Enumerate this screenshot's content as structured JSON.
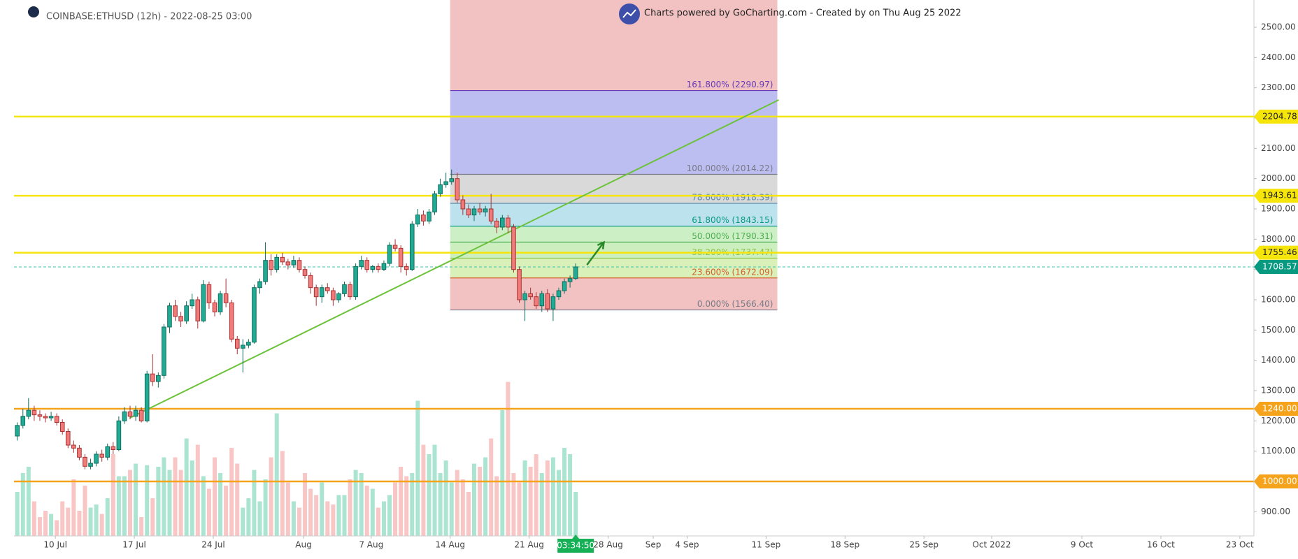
{
  "chart_data": {
    "type": "candlestick",
    "title": "COINBASE:ETHUSD (12h) - 2022-08-25 03:00",
    "credit": "Charts powered by GoCharting.com - Created by  on Thu Aug 25 2022",
    "timer": "03:34:50",
    "up_color": "#22ab94",
    "up_border": "#0e6e5e",
    "down_color": "#f07b7b",
    "down_border": "#a93232",
    "volume_up_color": "#abe5d2",
    "volume_down_color": "#f9c6c6",
    "grid": false,
    "ylim": [
      820,
      2590
    ],
    "yticks": [
      {
        "value": 900,
        "label": "900.00"
      },
      {
        "value": 1000,
        "label": "1000.00"
      },
      {
        "value": 1100,
        "label": "1100.00"
      },
      {
        "value": 1200,
        "label": "1200.00"
      },
      {
        "value": 1300,
        "label": "1300.00"
      },
      {
        "value": 1400,
        "label": "1400.00"
      },
      {
        "value": 1500,
        "label": "1500.00"
      },
      {
        "value": 1600,
        "label": "1600.00"
      },
      {
        "value": 1700,
        "label": "1700.00"
      },
      {
        "value": 1800,
        "label": "1800.00"
      },
      {
        "value": 1900,
        "label": "1900.00"
      },
      {
        "value": 2000,
        "label": "2000.00"
      },
      {
        "value": 2100,
        "label": "2100.00"
      },
      {
        "value": 2200,
        "label": "2200.00"
      },
      {
        "value": 2300,
        "label": "2300.00"
      },
      {
        "value": 2400,
        "label": "2400.00"
      },
      {
        "value": 2500,
        "label": "2500.00"
      }
    ],
    "xlim": [
      "2022-07-06 08:00",
      "2022-10-24 06:00"
    ],
    "xticks": [
      {
        "value": "2022-07-10 00:00",
        "label": "10 Jul"
      },
      {
        "value": "2022-07-17 00:00",
        "label": "17 Jul"
      },
      {
        "value": "2022-07-24 00:00",
        "label": "24 Jul"
      },
      {
        "value": "2022-08-01 00:00",
        "label": "Aug"
      },
      {
        "value": "2022-08-07 00:00",
        "label": "7 Aug"
      },
      {
        "value": "2022-08-14 00:00",
        "label": "14 Aug"
      },
      {
        "value": "2022-08-21 00:00",
        "label": "21 Aug"
      },
      {
        "value": "2022-08-28 00:00",
        "label": "28 Aug"
      },
      {
        "value": "2022-09-01 00:00",
        "label": "Sep"
      },
      {
        "value": "2022-09-04 00:00",
        "label": "4 Sep"
      },
      {
        "value": "2022-09-11 00:00",
        "label": "11 Sep"
      },
      {
        "value": "2022-09-18 00:00",
        "label": "18 Sep"
      },
      {
        "value": "2022-09-25 00:00",
        "label": "25 Sep"
      },
      {
        "value": "2022-10-01 00:00",
        "label": "Oct 2022"
      },
      {
        "value": "2022-10-09 00:00",
        "label": "9 Oct"
      },
      {
        "value": "2022-10-16 00:00",
        "label": "16 Oct"
      },
      {
        "value": "2022-10-23 00:00",
        "label": "23 Oct"
      }
    ],
    "x": [
      "2022-07-06 15:00",
      "2022-07-07 03:00",
      "2022-07-07 15:00",
      "2022-07-08 03:00",
      "2022-07-08 15:00",
      "2022-07-09 03:00",
      "2022-07-09 15:00",
      "2022-07-10 03:00",
      "2022-07-10 15:00",
      "2022-07-11 03:00",
      "2022-07-11 15:00",
      "2022-07-12 03:00",
      "2022-07-12 15:00",
      "2022-07-13 03:00",
      "2022-07-13 15:00",
      "2022-07-14 03:00",
      "2022-07-14 15:00",
      "2022-07-15 03:00",
      "2022-07-15 15:00",
      "2022-07-16 03:00",
      "2022-07-16 15:00",
      "2022-07-17 03:00",
      "2022-07-17 15:00",
      "2022-07-18 03:00",
      "2022-07-18 15:00",
      "2022-07-19 03:00",
      "2022-07-19 15:00",
      "2022-07-20 03:00",
      "2022-07-20 15:00",
      "2022-07-21 03:00",
      "2022-07-21 15:00",
      "2022-07-22 03:00",
      "2022-07-22 15:00",
      "2022-07-23 03:00",
      "2022-07-23 15:00",
      "2022-07-24 03:00",
      "2022-07-24 15:00",
      "2022-07-25 03:00",
      "2022-07-25 15:00",
      "2022-07-26 03:00",
      "2022-07-26 15:00",
      "2022-07-27 03:00",
      "2022-07-27 15:00",
      "2022-07-28 03:00",
      "2022-07-28 15:00",
      "2022-07-29 03:00",
      "2022-07-29 15:00",
      "2022-07-30 03:00",
      "2022-07-30 15:00",
      "2022-07-31 03:00",
      "2022-07-31 15:00",
      "2022-08-01 03:00",
      "2022-08-01 15:00",
      "2022-08-02 03:00",
      "2022-08-02 15:00",
      "2022-08-03 03:00",
      "2022-08-03 15:00",
      "2022-08-04 03:00",
      "2022-08-04 15:00",
      "2022-08-05 03:00",
      "2022-08-05 15:00",
      "2022-08-06 03:00",
      "2022-08-06 15:00",
      "2022-08-07 03:00",
      "2022-08-07 15:00",
      "2022-08-08 03:00",
      "2022-08-08 15:00",
      "2022-08-09 03:00",
      "2022-08-09 15:00",
      "2022-08-10 03:00",
      "2022-08-10 15:00",
      "2022-08-11 03:00",
      "2022-08-11 15:00",
      "2022-08-12 03:00",
      "2022-08-12 15:00",
      "2022-08-13 03:00",
      "2022-08-13 15:00",
      "2022-08-14 03:00",
      "2022-08-14 15:00",
      "2022-08-15 03:00",
      "2022-08-15 15:00",
      "2022-08-16 03:00",
      "2022-08-16 15:00",
      "2022-08-17 03:00",
      "2022-08-17 15:00",
      "2022-08-18 03:00",
      "2022-08-18 15:00",
      "2022-08-19 03:00",
      "2022-08-19 15:00",
      "2022-08-20 03:00",
      "2022-08-20 15:00",
      "2022-08-21 03:00",
      "2022-08-21 15:00",
      "2022-08-22 03:00",
      "2022-08-22 15:00",
      "2022-08-23 03:00",
      "2022-08-23 15:00",
      "2022-08-24 03:00",
      "2022-08-24 15:00",
      "2022-08-25 03:00"
    ],
    "candles": [
      [
        1150,
        1195,
        1135,
        1185
      ],
      [
        1185,
        1240,
        1175,
        1215
      ],
      [
        1215,
        1275,
        1205,
        1235
      ],
      [
        1235,
        1250,
        1200,
        1220
      ],
      [
        1220,
        1235,
        1200,
        1215
      ],
      [
        1215,
        1225,
        1195,
        1210
      ],
      [
        1210,
        1230,
        1200,
        1215
      ],
      [
        1215,
        1225,
        1185,
        1195
      ],
      [
        1195,
        1205,
        1155,
        1165
      ],
      [
        1165,
        1175,
        1110,
        1120
      ],
      [
        1120,
        1135,
        1095,
        1110
      ],
      [
        1110,
        1120,
        1070,
        1080
      ],
      [
        1080,
        1090,
        1040,
        1050
      ],
      [
        1050,
        1075,
        1040,
        1060
      ],
      [
        1060,
        1100,
        1050,
        1090
      ],
      [
        1090,
        1105,
        1065,
        1080
      ],
      [
        1080,
        1125,
        1070,
        1115
      ],
      [
        1115,
        1130,
        1090,
        1105
      ],
      [
        1105,
        1215,
        1100,
        1200
      ],
      [
        1200,
        1245,
        1190,
        1230
      ],
      [
        1230,
        1250,
        1205,
        1215
      ],
      [
        1215,
        1250,
        1200,
        1235
      ],
      [
        1235,
        1245,
        1195,
        1200
      ],
      [
        1200,
        1365,
        1195,
        1355
      ],
      [
        1355,
        1420,
        1315,
        1330
      ],
      [
        1330,
        1360,
        1310,
        1350
      ],
      [
        1350,
        1520,
        1340,
        1510
      ],
      [
        1510,
        1590,
        1490,
        1580
      ],
      [
        1580,
        1600,
        1530,
        1545
      ],
      [
        1545,
        1560,
        1510,
        1530
      ],
      [
        1530,
        1595,
        1520,
        1580
      ],
      [
        1580,
        1620,
        1570,
        1600
      ],
      [
        1600,
        1610,
        1505,
        1530
      ],
      [
        1530,
        1665,
        1525,
        1650
      ],
      [
        1650,
        1660,
        1570,
        1590
      ],
      [
        1590,
        1600,
        1545,
        1560
      ],
      [
        1560,
        1630,
        1550,
        1620
      ],
      [
        1620,
        1670,
        1575,
        1590
      ],
      [
        1590,
        1600,
        1460,
        1470
      ],
      [
        1470,
        1480,
        1420,
        1440
      ],
      [
        1440,
        1470,
        1360,
        1450
      ],
      [
        1450,
        1470,
        1440,
        1460
      ],
      [
        1460,
        1650,
        1455,
        1640
      ],
      [
        1640,
        1670,
        1620,
        1660
      ],
      [
        1660,
        1790,
        1650,
        1730
      ],
      [
        1730,
        1750,
        1680,
        1700
      ],
      [
        1700,
        1750,
        1690,
        1740
      ],
      [
        1740,
        1755,
        1715,
        1725
      ],
      [
        1725,
        1735,
        1700,
        1715
      ],
      [
        1715,
        1745,
        1705,
        1730
      ],
      [
        1730,
        1740,
        1690,
        1700
      ],
      [
        1700,
        1710,
        1670,
        1680
      ],
      [
        1680,
        1690,
        1620,
        1640
      ],
      [
        1640,
        1650,
        1580,
        1610
      ],
      [
        1610,
        1650,
        1590,
        1640
      ],
      [
        1640,
        1655,
        1620,
        1630
      ],
      [
        1630,
        1640,
        1580,
        1600
      ],
      [
        1600,
        1625,
        1590,
        1620
      ],
      [
        1620,
        1660,
        1610,
        1650
      ],
      [
        1650,
        1660,
        1600,
        1610
      ],
      [
        1610,
        1720,
        1600,
        1710
      ],
      [
        1710,
        1745,
        1700,
        1730
      ],
      [
        1730,
        1740,
        1690,
        1700
      ],
      [
        1700,
        1715,
        1690,
        1710
      ],
      [
        1710,
        1720,
        1690,
        1700
      ],
      [
        1700,
        1730,
        1695,
        1720
      ],
      [
        1720,
        1790,
        1710,
        1780
      ],
      [
        1780,
        1800,
        1760,
        1770
      ],
      [
        1770,
        1780,
        1690,
        1710
      ],
      [
        1710,
        1720,
        1680,
        1700
      ],
      [
        1700,
        1860,
        1695,
        1850
      ],
      [
        1850,
        1900,
        1840,
        1880
      ],
      [
        1880,
        1895,
        1845,
        1860
      ],
      [
        1860,
        1900,
        1850,
        1890
      ],
      [
        1890,
        1960,
        1880,
        1950
      ],
      [
        1950,
        2000,
        1940,
        1980
      ],
      [
        1980,
        2020,
        1970,
        1990
      ],
      [
        1990,
        2030,
        1980,
        2000
      ],
      [
        2000,
        2020,
        1920,
        1930
      ],
      [
        1930,
        1945,
        1880,
        1900
      ],
      [
        1900,
        1915,
        1870,
        1880
      ],
      [
        1880,
        1910,
        1860,
        1900
      ],
      [
        1900,
        1920,
        1880,
        1890
      ],
      [
        1890,
        1910,
        1875,
        1900
      ],
      [
        1900,
        1950,
        1850,
        1860
      ],
      [
        1860,
        1870,
        1820,
        1840
      ],
      [
        1840,
        1880,
        1830,
        1870
      ],
      [
        1870,
        1880,
        1820,
        1840
      ],
      [
        1840,
        1850,
        1690,
        1700
      ],
      [
        1700,
        1710,
        1590,
        1600
      ],
      [
        1600,
        1630,
        1530,
        1620
      ],
      [
        1620,
        1640,
        1600,
        1610
      ],
      [
        1610,
        1625,
        1570,
        1580
      ],
      [
        1580,
        1630,
        1560,
        1620
      ],
      [
        1620,
        1635,
        1560,
        1570
      ],
      [
        1570,
        1620,
        1530,
        1610
      ],
      [
        1610,
        1640,
        1600,
        1630
      ],
      [
        1630,
        1670,
        1620,
        1660
      ],
      [
        1660,
        1680,
        1640,
        1670
      ],
      [
        1670,
        1720,
        1665,
        1708.57
      ]
    ],
    "volume": [
      28,
      40,
      44,
      22,
      12,
      16,
      14,
      10,
      22,
      18,
      36,
      16,
      32,
      18,
      20,
      14,
      24,
      52,
      38,
      38,
      42,
      46,
      12,
      45,
      24,
      44,
      50,
      42,
      50,
      42,
      62,
      48,
      58,
      38,
      30,
      50,
      40,
      32,
      56,
      46,
      18,
      24,
      42,
      22,
      36,
      50,
      78,
      54,
      34,
      22,
      18,
      40,
      30,
      26,
      34,
      22,
      20,
      26,
      26,
      36,
      42,
      40,
      32,
      30,
      18,
      22,
      26,
      34,
      44,
      38,
      40,
      86,
      58,
      52,
      58,
      40,
      48,
      34,
      42,
      36,
      28,
      46,
      44,
      50,
      62,
      38,
      80,
      98,
      40,
      34,
      48,
      44,
      52,
      40,
      48,
      50,
      42,
      56,
      52,
      28
    ],
    "hlines": [
      {
        "value": 2204.78,
        "color": "#f5e50a",
        "text_color": "#222"
      },
      {
        "value": 1943.61,
        "color": "#f5e50a",
        "text_color": "#222"
      },
      {
        "value": 1755.46,
        "color": "#f5e50a",
        "text_color": "#222"
      },
      {
        "value": 1240,
        "label": "1240.00",
        "color": "#f5a31a",
        "text_color": "#fff"
      },
      {
        "value": 1000,
        "label": "1000.00",
        "color": "#f5a31a",
        "text_color": "#fff"
      }
    ],
    "last_price": {
      "value": 1708.57,
      "color": "#089981"
    },
    "trendline": {
      "x": [
        "2022-07-16 15:00",
        "2022-09-12 03:00"
      ],
      "y": [
        1210,
        2260
      ],
      "color": "#6cc23a"
    },
    "arrow": {
      "x": [
        "2022-08-26 03:00",
        "2022-08-27 15:00"
      ],
      "y": [
        1715,
        1790
      ],
      "color": "#2a8a2a"
    },
    "fib": {
      "x": [
        "2022-08-14 00:00",
        "2022-09-12 00:00"
      ],
      "levels": [
        {
          "value": 1566.4,
          "label": "0.000% (1566.40)"
        },
        {
          "value": 1672.09,
          "label": "23.600% (1672.09)"
        },
        {
          "value": 1737.47,
          "label": "38.200% (1737.47)"
        },
        {
          "value": 1790.31,
          "label": "50.000% (1790.31)"
        },
        {
          "value": 1843.15,
          "label": "61.800% (1843.15)"
        },
        {
          "value": 1918.39,
          "label": "78.600% (1918.39)"
        },
        {
          "value": 2014.22,
          "label": "100.000% (2014.22)"
        },
        {
          "value": 2290.97,
          "label": "161.800% (2290.97)"
        }
      ],
      "level_colors": [
        "#787b86",
        "#d4622a",
        "#8bc34a",
        "#4caf50",
        "#089981",
        "#5b8aa6",
        "#787b86",
        "#673ab7"
      ],
      "zone_colors": [
        "#f2c1c1",
        "#d9f0b9",
        "#cdefc0",
        "#cdefc6",
        "#bce2ee",
        "#d9d9d9",
        "#bcbdf0",
        "#f2c1c1"
      ]
    }
  }
}
